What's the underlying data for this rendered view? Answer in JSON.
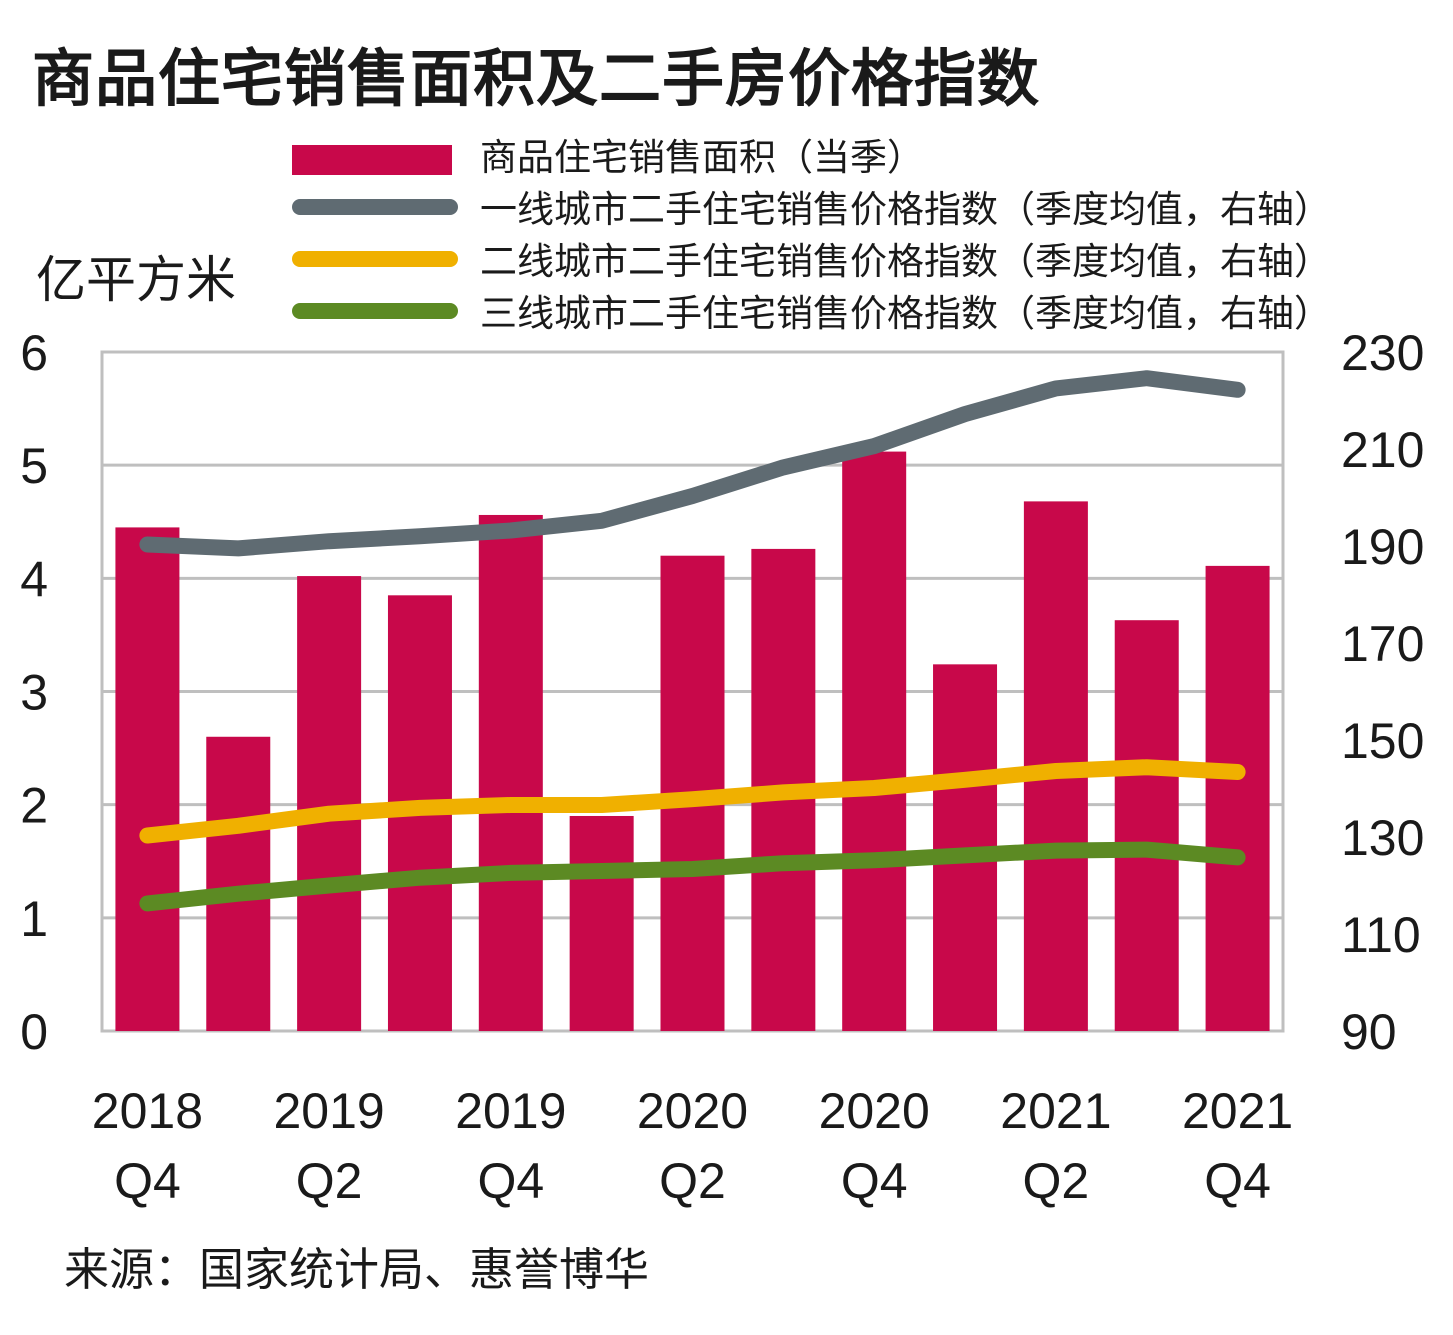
{
  "chart_data": {
    "type": "bar+line",
    "title": "商品住宅销售面积及二手房价格指数",
    "y_left_label": "亿平方米",
    "y_left_lim": [
      0,
      6
    ],
    "y_left_ticks": [
      "0",
      "1",
      "2",
      "3",
      "4",
      "5",
      "6"
    ],
    "y_right_lim": [
      90,
      230
    ],
    "y_right_ticks": [
      "90",
      "110",
      "130",
      "150",
      "170",
      "190",
      "210",
      "230"
    ],
    "x_tick_labels": [
      {
        "year": "2018",
        "q": "Q4",
        "index": 0
      },
      {
        "year": "2019",
        "q": "Q2",
        "index": 2
      },
      {
        "year": "2019",
        "q": "Q4",
        "index": 4
      },
      {
        "year": "2020",
        "q": "Q2",
        "index": 6
      },
      {
        "year": "2020",
        "q": "Q4",
        "index": 8
      },
      {
        "year": "2021",
        "q": "Q2",
        "index": 10
      },
      {
        "year": "2021",
        "q": "Q4",
        "index": 12
      }
    ],
    "categories": [
      "2018Q4",
      "2019Q1",
      "2019Q2",
      "2019Q3",
      "2019Q4",
      "2020Q1",
      "2020Q2",
      "2020Q3",
      "2020Q4",
      "2021Q1",
      "2021Q2",
      "2021Q3",
      "2021Q4"
    ],
    "grid": true,
    "legend_position": "top",
    "bar_series": {
      "name": "商品住宅销售面积（当季）",
      "color": "#C8084A",
      "axis": "left",
      "values": [
        4.45,
        2.6,
        4.02,
        3.85,
        4.56,
        1.9,
        4.2,
        4.26,
        5.12,
        3.24,
        4.68,
        3.63,
        4.11
      ]
    },
    "line_series": [
      {
        "name": "一线城市二手住宅销售价格指数（季度均值，右轴）",
        "color": "#5F6B72",
        "axis": "right",
        "values": [
          190.3,
          189.5,
          191.0,
          192.0,
          193.2,
          195.2,
          200.3,
          206.2,
          210.6,
          217.2,
          222.5,
          224.6,
          222.2
        ]
      },
      {
        "name": "二线城市二手住宅销售价格指数（季度均值，右轴）",
        "color": "#F0B000",
        "axis": "right",
        "values": [
          130.3,
          132.3,
          134.8,
          136.0,
          136.6,
          136.6,
          137.8,
          139.2,
          140.1,
          141.8,
          143.6,
          144.4,
          143.4
        ]
      },
      {
        "name": "三线城市二手住宅销售价格指数（季度均值，右轴）",
        "color": "#5C8A23",
        "axis": "right",
        "values": [
          116.3,
          118.3,
          120.0,
          121.6,
          122.6,
          123.0,
          123.4,
          124.6,
          125.2,
          126.2,
          127.2,
          127.4,
          125.8
        ]
      }
    ]
  },
  "source": "来源：国家统计局、惠誉博华"
}
